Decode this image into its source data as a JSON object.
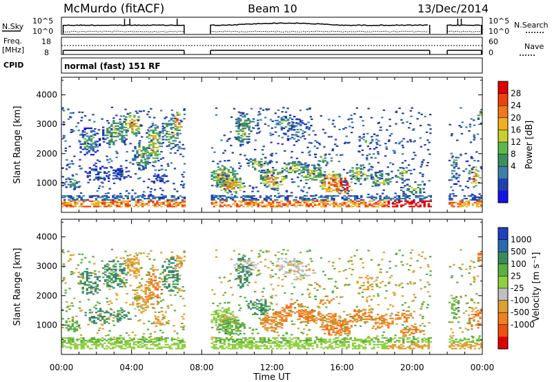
{
  "header": {
    "station": "McMurdo (fitACF)",
    "beam": "Beam 10",
    "date": "13/Dec/2014"
  },
  "status": {
    "nsky_label": "N.Sky",
    "nsky_ticks": [
      "10^5",
      "10^0"
    ],
    "nsearch_label": "N.Search",
    "nsearch_ticks": [
      "10^5",
      "10^0"
    ],
    "freq_label": "Freq.",
    "freq_unit": "[MHz]",
    "freq_ticks": [
      "18",
      "8"
    ],
    "nave_label": "Nave",
    "nave_ticks": [
      "60",
      "0"
    ],
    "cpid_label": "CPID",
    "cpid_text": "normal (fast) 151 RF"
  },
  "chart_data": [
    {
      "type": "heatmap",
      "name": "power",
      "ylabel": "Slant Range [km]",
      "xlabel": "Time UT",
      "x_ticks": [
        "00:00",
        "04:00",
        "08:00",
        "12:00",
        "16:00",
        "20:00",
        "00:00"
      ],
      "y_ticks": [
        "1000",
        "2000",
        "3000",
        "4000"
      ],
      "colorbar_label": "Power [dB]",
      "colorbar_ticks": [
        "4",
        "8",
        "12",
        "16",
        "20",
        "24",
        "28"
      ],
      "colorbar_colors": [
        "#1414e6",
        "#2040b0",
        "#3d7fa8",
        "#3c8f5a",
        "#5fb84a",
        "#c8d030",
        "#f0b020",
        "#f07818",
        "#f04010",
        "#e00000"
      ],
      "data_gaps_ut": [
        [
          7.0,
          8.5
        ],
        [
          21.0,
          22.0
        ]
      ]
    },
    {
      "type": "heatmap",
      "name": "velocity",
      "ylabel": "Slant Range [km]",
      "xlabel": "Time UT",
      "x_ticks": [
        "00:00",
        "04:00",
        "08:00",
        "12:00",
        "16:00",
        "20:00",
        "00:00"
      ],
      "y_ticks": [
        "1000",
        "2000",
        "3000",
        "4000"
      ],
      "colorbar_label": "Velocity [m s⁻¹]",
      "colorbar_ticks": [
        "1000",
        "500",
        "100",
        "25",
        "-25",
        "-100",
        "-500",
        "-1000"
      ],
      "colorbar_colors": [
        "#2040c0",
        "#2a6ab0",
        "#3a8a60",
        "#5ab040",
        "#90d040",
        "#c0c0c0",
        "#e0a030",
        "#f08020",
        "#f05010",
        "#e00000"
      ],
      "data_gaps_ut": [
        [
          7.0,
          8.5
        ],
        [
          21.0,
          22.0
        ]
      ]
    }
  ]
}
